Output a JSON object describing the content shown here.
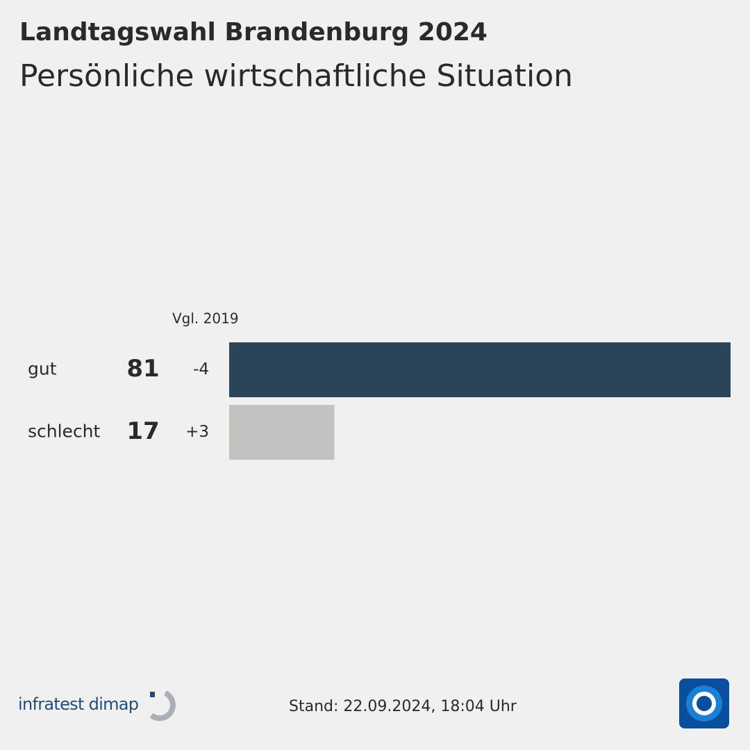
{
  "chart_data": {
    "type": "bar",
    "title": "Landtagswahl Brandenburg 2024",
    "subtitle": "Persönliche wirtschaftliche Situation",
    "comparison_header": "Vgl. 2019",
    "categories": [
      "gut",
      "schlecht"
    ],
    "values": [
      81,
      17
    ],
    "changes": [
      "-4",
      "+3"
    ],
    "colors": [
      "#2b4458",
      "#c2c2c0"
    ]
  },
  "footer": {
    "source": "infratest dimap",
    "timestamp": "Stand:  22.09.2024, 18:04 Uhr"
  }
}
